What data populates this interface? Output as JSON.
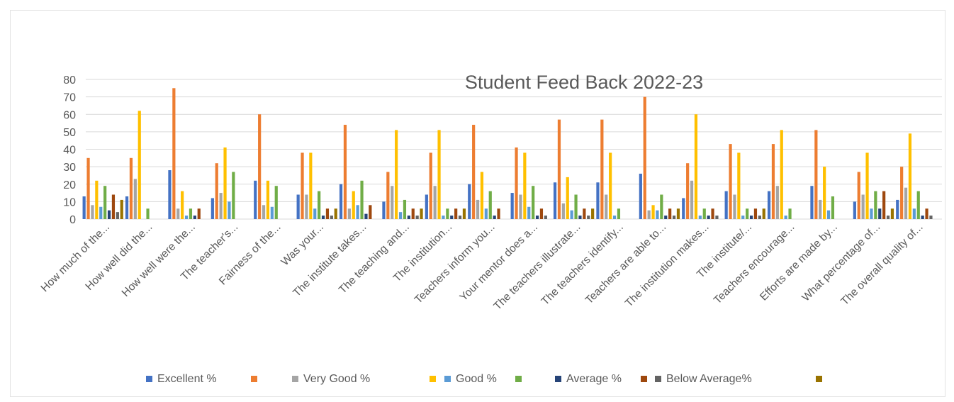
{
  "chart_data": {
    "type": "bar",
    "title": "Student Feed Back 2022-23",
    "xlabel": "",
    "ylabel": "",
    "ylim": [
      0,
      80
    ],
    "yticks": [
      0,
      10,
      20,
      30,
      40,
      50,
      60,
      70,
      80
    ],
    "grid": true,
    "legend_position": "bottom",
    "legend_entries": [
      "Excellent %",
      "",
      "Very Good %",
      "",
      "Good %",
      "",
      "Average %",
      "",
      "Below Average%",
      ""
    ],
    "categories": [
      "How much of the...",
      "How well did the...",
      "How well were the...",
      "The teacher's...",
      "Fairness of the...",
      "Was your...",
      "The institute takes...",
      "The teaching and...",
      "The institution...",
      "Teachers inform you...",
      "Your mentor does a...",
      "The teachers illustrate...",
      "The teachers identify...",
      "Teachers are able to...",
      "The institution makes...",
      "The institute/...",
      "Teachers encourage...",
      "Efforts are made by...",
      "What percentage of...",
      "The overall quality of..."
    ],
    "series": [
      {
        "name": "Excellent %",
        "color": "#4472C4",
        "values": [
          13,
          13,
          28,
          12,
          22,
          14,
          20,
          10,
          14,
          20,
          15,
          21,
          21,
          26,
          12,
          16,
          16,
          19,
          10,
          11
        ]
      },
      {
        "name": "",
        "color": "#ED7D31",
        "values": [
          35,
          35,
          75,
          32,
          60,
          38,
          54,
          27,
          38,
          54,
          41,
          57,
          57,
          70,
          32,
          43,
          43,
          51,
          27,
          30
        ]
      },
      {
        "name": "Very Good %",
        "color": "#A5A5A5",
        "values": [
          8,
          23,
          6,
          15,
          8,
          14,
          6,
          19,
          19,
          11,
          14,
          9,
          14,
          5,
          22,
          14,
          19,
          11,
          14,
          18
        ]
      },
      {
        "name": "",
        "color": "#FFC000",
        "values": [
          22,
          62,
          16,
          41,
          22,
          38,
          16,
          51,
          51,
          27,
          38,
          24,
          38,
          8,
          60,
          38,
          51,
          30,
          38,
          49
        ]
      },
      {
        "name": "Good %",
        "color": "#5B9BD5",
        "values": [
          7,
          0,
          2,
          10,
          7,
          6,
          8,
          4,
          2,
          6,
          7,
          5,
          2,
          5,
          2,
          2,
          2,
          5,
          6,
          6
        ]
      },
      {
        "name": "",
        "color": "#70AD47",
        "values": [
          19,
          6,
          6,
          27,
          19,
          16,
          22,
          11,
          6,
          16,
          19,
          14,
          6,
          14,
          6,
          6,
          6,
          13,
          16,
          16
        ]
      },
      {
        "name": "Average %",
        "color": "#264478",
        "values": [
          5,
          0,
          2,
          0,
          0,
          2,
          3,
          2,
          2,
          2,
          2,
          2,
          0,
          2,
          2,
          2,
          0,
          0,
          6,
          2
        ]
      },
      {
        "name": "",
        "color": "#9E480E",
        "values": [
          14,
          0,
          6,
          0,
          0,
          6,
          8,
          6,
          6,
          6,
          6,
          6,
          0,
          6,
          6,
          6,
          0,
          0,
          16,
          6
        ]
      },
      {
        "name": "Below Average%",
        "color": "#636363",
        "values": [
          4,
          0,
          0,
          0,
          0,
          2,
          0,
          2,
          2,
          0,
          2,
          2,
          0,
          2,
          2,
          2,
          0,
          0,
          2,
          2
        ]
      },
      {
        "name": "",
        "color": "#997300",
        "values": [
          11,
          0,
          0,
          0,
          0,
          6,
          0,
          6,
          6,
          0,
          0,
          6,
          0,
          6,
          0,
          6,
          0,
          0,
          6,
          0
        ]
      }
    ]
  }
}
